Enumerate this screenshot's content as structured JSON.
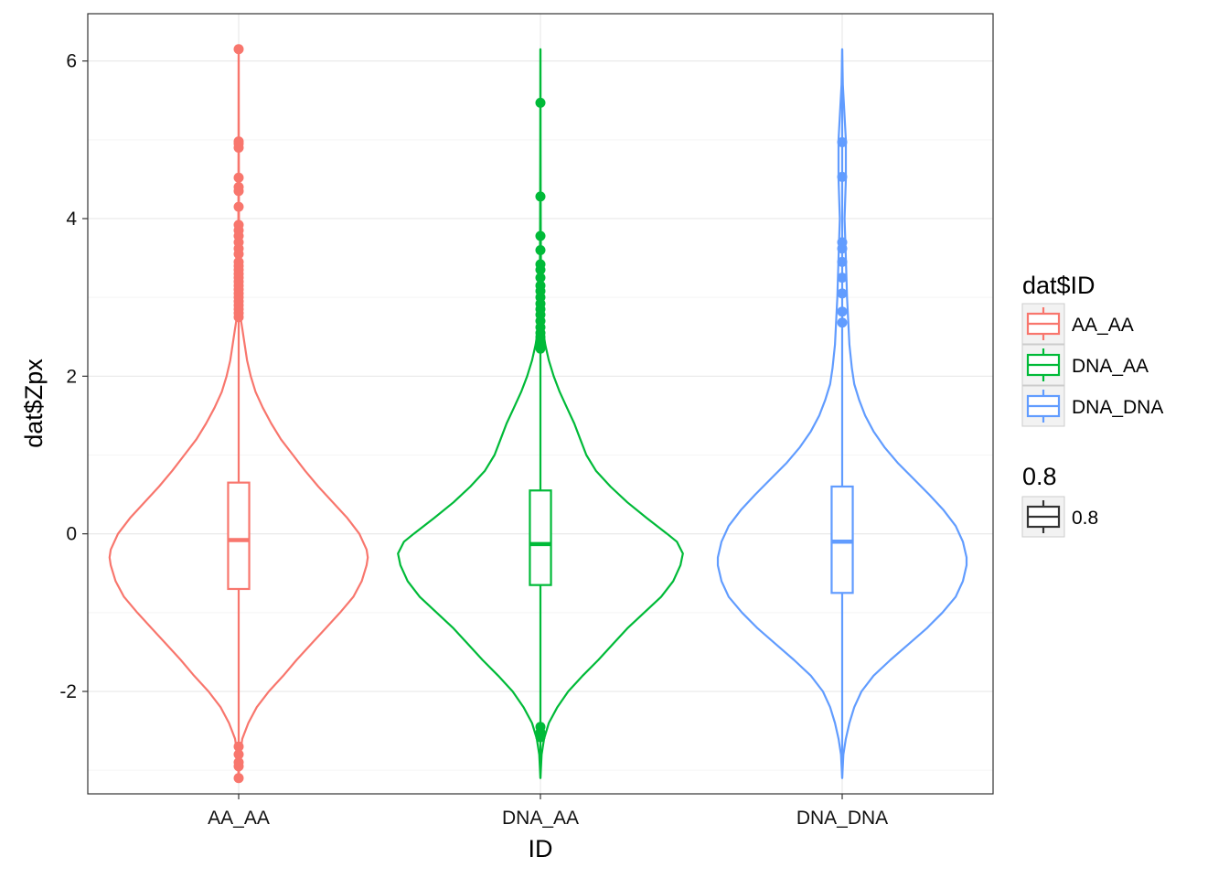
{
  "chart_data": {
    "type": "violin",
    "xlabel": "ID",
    "ylabel": "dat$Zpx",
    "categories": [
      "AA_AA",
      "DNA_AA",
      "DNA_DNA"
    ],
    "ylim": [
      -3.3,
      6.6
    ],
    "yticks": [
      -2,
      0,
      2,
      4,
      6
    ],
    "ytick_labels": [
      "-2",
      "0",
      "2",
      "4",
      "6"
    ],
    "grid": true,
    "legend": {
      "placement": "right",
      "color_title": "dat$ID",
      "color_entries": [
        "AA_AA",
        "DNA_AA",
        "DNA_DNA"
      ],
      "width_title": "0.8",
      "width_entries": [
        "0.8"
      ]
    },
    "series": [
      {
        "category": "AA_AA",
        "color": "#F8766D",
        "violin_min": -3.1,
        "violin_max": 6.15,
        "violin_profile": [
          [
            -3.1,
            0.0
          ],
          [
            -2.8,
            0.01
          ],
          [
            -2.6,
            0.03
          ],
          [
            -2.4,
            0.08
          ],
          [
            -2.2,
            0.15
          ],
          [
            -2.0,
            0.25
          ],
          [
            -1.8,
            0.37
          ],
          [
            -1.6,
            0.48
          ],
          [
            -1.4,
            0.6
          ],
          [
            -1.2,
            0.72
          ],
          [
            -1.0,
            0.84
          ],
          [
            -0.8,
            0.95
          ],
          [
            -0.6,
            1.02
          ],
          [
            -0.4,
            1.06
          ],
          [
            -0.3,
            1.07
          ],
          [
            -0.2,
            1.06
          ],
          [
            0.0,
            1.0
          ],
          [
            0.2,
            0.9
          ],
          [
            0.4,
            0.78
          ],
          [
            0.6,
            0.66
          ],
          [
            0.8,
            0.55
          ],
          [
            1.0,
            0.45
          ],
          [
            1.2,
            0.35
          ],
          [
            1.4,
            0.27
          ],
          [
            1.6,
            0.2
          ],
          [
            1.8,
            0.14
          ],
          [
            2.0,
            0.1
          ],
          [
            2.2,
            0.07
          ],
          [
            2.4,
            0.05
          ],
          [
            2.6,
            0.03
          ],
          [
            2.8,
            0.01
          ],
          [
            3.0,
            0.005
          ],
          [
            3.5,
            0.003
          ],
          [
            4.0,
            0.002
          ],
          [
            5.0,
            0.001
          ],
          [
            6.15,
            0.0
          ]
        ],
        "q1": -0.7,
        "median": -0.08,
        "q3": 0.65,
        "whisker_low": -2.65,
        "whisker_high": 2.7,
        "outliers": [
          6.15,
          4.98,
          4.95,
          4.9,
          4.52,
          4.4,
          4.35,
          4.15,
          3.92,
          3.85,
          3.78,
          3.7,
          3.62,
          3.55,
          3.45,
          3.4,
          3.35,
          3.3,
          3.25,
          3.2,
          3.15,
          3.1,
          3.05,
          3.0,
          2.95,
          2.9,
          2.85,
          2.8,
          2.75,
          -2.7,
          -2.8,
          -2.9,
          -2.95,
          -3.1
        ]
      },
      {
        "category": "DNA_AA",
        "color": "#00BA38",
        "violin_min": -3.1,
        "violin_max": 6.15,
        "violin_profile": [
          [
            -3.1,
            0.0
          ],
          [
            -2.8,
            0.01
          ],
          [
            -2.6,
            0.03
          ],
          [
            -2.4,
            0.07
          ],
          [
            -2.2,
            0.14
          ],
          [
            -2.0,
            0.23
          ],
          [
            -1.8,
            0.35
          ],
          [
            -1.6,
            0.48
          ],
          [
            -1.4,
            0.6
          ],
          [
            -1.2,
            0.72
          ],
          [
            -1.0,
            0.86
          ],
          [
            -0.8,
            1.0
          ],
          [
            -0.6,
            1.1
          ],
          [
            -0.4,
            1.16
          ],
          [
            -0.25,
            1.18
          ],
          [
            -0.1,
            1.13
          ],
          [
            0.0,
            1.05
          ],
          [
            0.2,
            0.88
          ],
          [
            0.4,
            0.72
          ],
          [
            0.6,
            0.58
          ],
          [
            0.8,
            0.46
          ],
          [
            1.0,
            0.38
          ],
          [
            1.2,
            0.33
          ],
          [
            1.4,
            0.28
          ],
          [
            1.6,
            0.22
          ],
          [
            1.8,
            0.16
          ],
          [
            2.0,
            0.11
          ],
          [
            2.2,
            0.07
          ],
          [
            2.4,
            0.04
          ],
          [
            2.6,
            0.02
          ],
          [
            2.8,
            0.01
          ],
          [
            3.0,
            0.005
          ],
          [
            4.0,
            0.002
          ],
          [
            5.0,
            0.001
          ],
          [
            6.15,
            0.0
          ]
        ],
        "q1": -0.65,
        "median": -0.13,
        "q3": 0.55,
        "whisker_low": -2.4,
        "whisker_high": 2.3,
        "outliers": [
          5.47,
          4.28,
          3.78,
          3.6,
          3.42,
          3.35,
          3.25,
          3.15,
          3.08,
          3.0,
          2.92,
          2.85,
          2.78,
          2.7,
          2.62,
          2.55,
          2.5,
          2.45,
          2.4,
          2.35,
          -2.45,
          -2.52,
          -2.58
        ]
      },
      {
        "category": "DNA_DNA",
        "color": "#619CFF",
        "violin_min": -3.1,
        "violin_max": 6.15,
        "violin_profile": [
          [
            -3.1,
            0.0
          ],
          [
            -2.8,
            0.01
          ],
          [
            -2.6,
            0.03
          ],
          [
            -2.4,
            0.06
          ],
          [
            -2.2,
            0.1
          ],
          [
            -2.0,
            0.16
          ],
          [
            -1.8,
            0.26
          ],
          [
            -1.6,
            0.4
          ],
          [
            -1.4,
            0.55
          ],
          [
            -1.2,
            0.7
          ],
          [
            -1.0,
            0.83
          ],
          [
            -0.8,
            0.94
          ],
          [
            -0.6,
            1.0
          ],
          [
            -0.4,
            1.03
          ],
          [
            -0.3,
            1.03
          ],
          [
            -0.1,
            1.0
          ],
          [
            0.1,
            0.94
          ],
          [
            0.3,
            0.84
          ],
          [
            0.5,
            0.72
          ],
          [
            0.7,
            0.59
          ],
          [
            0.9,
            0.46
          ],
          [
            1.1,
            0.35
          ],
          [
            1.3,
            0.26
          ],
          [
            1.5,
            0.19
          ],
          [
            1.7,
            0.14
          ],
          [
            1.9,
            0.1
          ],
          [
            2.1,
            0.08
          ],
          [
            2.4,
            0.06
          ],
          [
            2.7,
            0.05
          ],
          [
            3.0,
            0.04
          ],
          [
            3.5,
            0.03
          ],
          [
            4.0,
            0.02
          ],
          [
            4.5,
            0.03
          ],
          [
            5.0,
            0.03
          ],
          [
            5.3,
            0.02
          ],
          [
            5.7,
            0.005
          ],
          [
            6.15,
            0.0
          ]
        ],
        "q1": -0.75,
        "median": -0.1,
        "q3": 0.6,
        "whisker_low": -2.25,
        "whisker_high": 2.6,
        "outliers": [
          4.97,
          4.53,
          3.7,
          3.62,
          3.45,
          3.25,
          3.05,
          2.82,
          2.68
        ]
      }
    ]
  }
}
